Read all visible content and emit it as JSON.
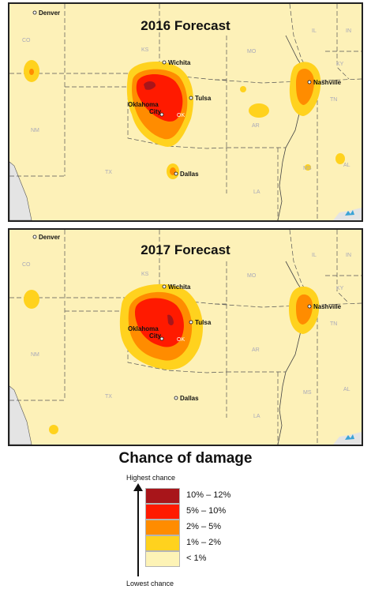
{
  "maps": [
    {
      "title": "2016 Forecast",
      "cities": {
        "denver": "Denver",
        "wichita": "Wichita",
        "tulsa": "Tulsa",
        "okc_line1": "Oklahoma",
        "okc_line2": "City",
        "dallas": "Dallas",
        "nashville": "Nashville"
      },
      "states": {
        "co": "CO",
        "ks": "KS",
        "mo": "MO",
        "il": "IL",
        "in": "IN",
        "ky": "KY",
        "tn": "TN",
        "nm": "NM",
        "tx": "TX",
        "ar": "AR",
        "la": "LA",
        "ms": "MS",
        "al": "AL",
        "ok": "OK"
      }
    },
    {
      "title": "2017 Forecast",
      "cities": {
        "denver": "Denver",
        "wichita": "Wichita",
        "tulsa": "Tulsa",
        "okc_line1": "Oklahoma",
        "okc_line2": "City",
        "dallas": "Dallas",
        "nashville": "Nashville"
      },
      "states": {
        "co": "CO",
        "ks": "KS",
        "mo": "MO",
        "il": "IL",
        "in": "IN",
        "ky": "KY",
        "tn": "TN",
        "nm": "NM",
        "tx": "TX",
        "ar": "AR",
        "la": "LA",
        "ms": "MS",
        "al": "AL",
        "ok": "OK"
      }
    }
  ],
  "legend": {
    "heading": "Chance of damage",
    "axis_top": "Highest chance",
    "axis_bottom": "Lowest chance",
    "items": [
      {
        "label": "10% – 12%",
        "color": "#a8151a"
      },
      {
        "label": "5% – 10%",
        "color": "#ff1a00"
      },
      {
        "label": "2% – 5%",
        "color": "#ff8c00"
      },
      {
        "label": "1% – 2%",
        "color": "#ffd21e"
      },
      {
        "label": "< 1%",
        "color": "#fdf3b6"
      }
    ]
  },
  "colors": {
    "level1": "#fdf1b8",
    "level2": "#ffd21e",
    "level3": "#ff8c00",
    "level4": "#ff1a00",
    "level5": "#a8151a",
    "ocean": "#e4e4e4",
    "water": "#3aa3d6"
  }
}
